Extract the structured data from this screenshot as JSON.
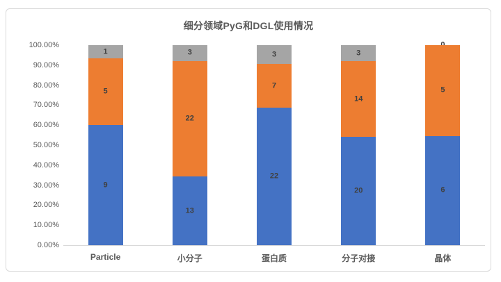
{
  "title": "细分领域PyG和DGL使用情况",
  "colors": {
    "series_blue": "#4472C4",
    "series_orange": "#ED7D31",
    "series_gray": "#A5A5A5",
    "axis_text": "#595959",
    "data_label_text": "#404040",
    "frame_border": "#D9D9D9",
    "background": "#FFFFFF"
  },
  "y_axis": {
    "ticks": [
      "100.00%",
      "90.00%",
      "80.00%",
      "70.00%",
      "60.00%",
      "50.00%",
      "40.00%",
      "30.00%",
      "20.00%",
      "10.00%",
      "0.00%"
    ]
  },
  "chart_data": {
    "type": "bar",
    "subtype": "100-percent-stacked-column",
    "title": "细分领域PyG和DGL使用情况",
    "categories": [
      "Particle",
      "小分子",
      "蛋白质",
      "分子对接",
      "晶体"
    ],
    "series": [
      {
        "name": "series-blue",
        "color": "#4472C4",
        "values": [
          9,
          13,
          22,
          20,
          6
        ]
      },
      {
        "name": "series-orange",
        "color": "#ED7D31",
        "values": [
          5,
          22,
          7,
          14,
          5
        ]
      },
      {
        "name": "series-gray",
        "color": "#A5A5A5",
        "values": [
          1,
          3,
          3,
          3,
          0
        ]
      }
    ],
    "data_labels": true,
    "xlabel": "",
    "ylabel": "",
    "ylim": [
      0,
      1
    ],
    "y_tick_format": "percent-2dp",
    "grid": false,
    "legend": "none"
  }
}
